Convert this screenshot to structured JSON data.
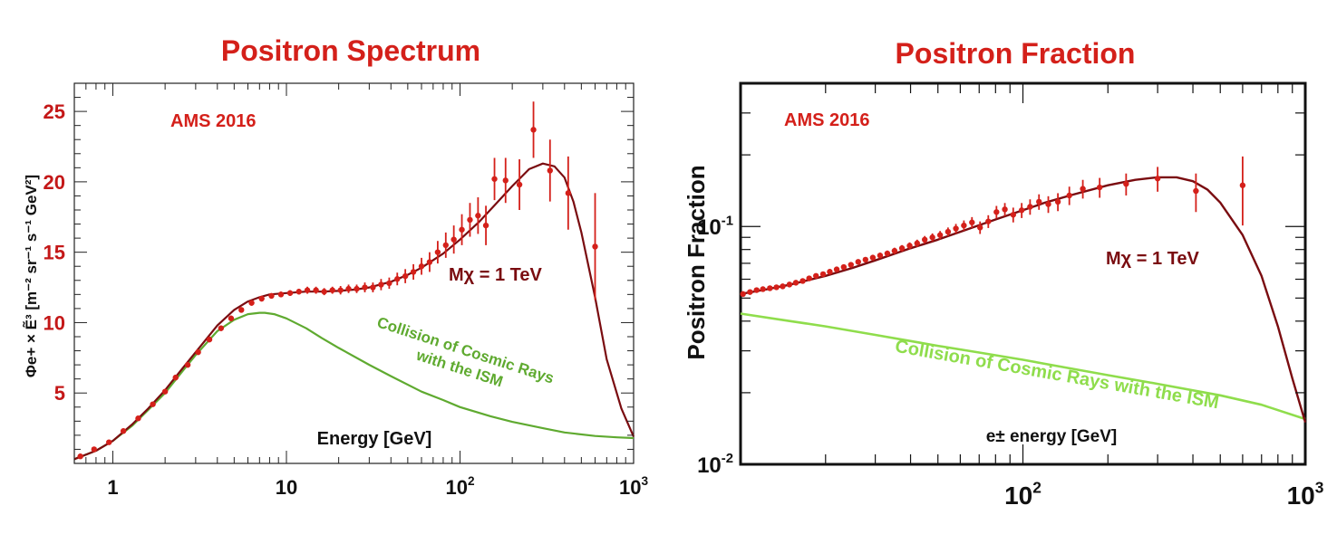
{
  "chart_data": [
    {
      "type": "scatter",
      "title": "Positron Spectrum",
      "ylabel": "Φe+ × Ẽ³ [m⁻² sr⁻¹ s⁻¹ GeV²]",
      "xlabel": "Energy [GeV]",
      "x_scale": "log",
      "y_scale": "linear",
      "xlim": [
        0.6,
        1000
      ],
      "ylim": [
        0,
        27
      ],
      "x_ticks": [
        {
          "v": 1,
          "base": "1",
          "exp": ""
        },
        {
          "v": 10,
          "base": "10",
          "exp": ""
        },
        {
          "v": 100,
          "base": "10",
          "exp": "2"
        },
        {
          "v": 1000,
          "base": "10",
          "exp": "3"
        }
      ],
      "y_ticks": [
        5,
        10,
        15,
        20,
        25
      ],
      "tag": "AMS 2016",
      "model_label": "Mχ = 1 TeV",
      "background_label": [
        "Collision of Cosmic Rays",
        "with the ISM"
      ],
      "colors": {
        "title": "#d4201a",
        "data": "#d4201a",
        "model": "#7a0c10",
        "background": "#5faa30",
        "tick": "#c41818"
      },
      "series": [
        {
          "name": "AMS 2016",
          "x": [
            0.65,
            0.78,
            0.95,
            1.15,
            1.4,
            1.7,
            2.0,
            2.3,
            2.7,
            3.1,
            3.6,
            4.2,
            4.8,
            5.5,
            6.3,
            7.2,
            8.2,
            9.3,
            10.5,
            11.8,
            13.2,
            14.8,
            16.5,
            18.4,
            20.5,
            22.8,
            25.4,
            28.3,
            31.5,
            35.1,
            39.1,
            43.5,
            48.4,
            53.9,
            60,
            66.8,
            74.4,
            82.8,
            92.1,
            102.5,
            114.1,
            127,
            141,
            158,
            183,
            220,
            265,
            330,
            420,
            600
          ],
          "y": [
            0.5,
            1.0,
            1.5,
            2.3,
            3.2,
            4.2,
            5.1,
            6.1,
            7.0,
            7.9,
            8.8,
            9.6,
            10.3,
            10.9,
            11.4,
            11.7,
            11.9,
            12.0,
            12.1,
            12.2,
            12.3,
            12.3,
            12.2,
            12.3,
            12.3,
            12.4,
            12.4,
            12.5,
            12.5,
            12.7,
            12.8,
            13.1,
            13.3,
            13.6,
            14.0,
            14.3,
            15.0,
            15.5,
            15.9,
            16.6,
            17.3,
            17.6,
            16.9,
            20.2,
            20.1,
            19.8,
            23.7,
            20.8,
            19.2,
            15.4
          ],
          "yerr": [
            0.1,
            0.1,
            0.1,
            0.1,
            0.1,
            0.15,
            0.15,
            0.2,
            0.2,
            0.2,
            0.2,
            0.2,
            0.2,
            0.2,
            0.2,
            0.2,
            0.2,
            0.2,
            0.2,
            0.2,
            0.25,
            0.25,
            0.25,
            0.25,
            0.3,
            0.3,
            0.3,
            0.35,
            0.35,
            0.4,
            0.4,
            0.45,
            0.5,
            0.55,
            0.6,
            0.7,
            0.8,
            0.9,
            1.0,
            1.1,
            1.2,
            1.3,
            1.4,
            1.5,
            1.6,
            1.8,
            2.0,
            2.2,
            2.6,
            3.8
          ]
        },
        {
          "name": "Mχ = 1 TeV",
          "x": [
            0.6,
            0.8,
            1.0,
            1.3,
            1.6,
            2.0,
            2.5,
            3.0,
            4.0,
            5.0,
            6.0,
            7.0,
            8.0,
            10,
            13,
            16,
            20,
            25,
            30,
            40,
            50,
            60,
            80,
            100,
            130,
            160,
            200,
            250,
            300,
            350,
            400,
            450,
            500,
            600,
            700,
            850,
            1000
          ],
          "y": [
            0.3,
            0.9,
            1.6,
            2.8,
            3.9,
            5.2,
            6.7,
            7.9,
            9.8,
            10.9,
            11.5,
            11.8,
            12.0,
            12.1,
            12.2,
            12.2,
            12.25,
            12.35,
            12.5,
            12.9,
            13.4,
            13.9,
            14.9,
            15.9,
            17.2,
            18.4,
            19.7,
            20.9,
            21.3,
            21.1,
            20.3,
            18.6,
            16.4,
            11.8,
            7.4,
            3.9,
            1.9
          ]
        },
        {
          "name": "Collision of Cosmic Rays with the ISM",
          "x": [
            0.6,
            0.8,
            1.0,
            1.3,
            1.6,
            2.0,
            2.5,
            3.0,
            4.0,
            5.0,
            6.0,
            7.0,
            7.5,
            8.5,
            10,
            13,
            16,
            20,
            30,
            40,
            60,
            80,
            100,
            150,
            200,
            300,
            400,
            600,
            800,
            1000
          ],
          "y": [
            0.3,
            0.9,
            1.6,
            2.7,
            3.8,
            5.0,
            6.5,
            7.7,
            9.4,
            10.2,
            10.6,
            10.7,
            10.7,
            10.6,
            10.3,
            9.6,
            8.9,
            8.2,
            7.0,
            6.2,
            5.1,
            4.5,
            4.0,
            3.35,
            2.95,
            2.5,
            2.2,
            1.95,
            1.85,
            1.8
          ]
        }
      ]
    },
    {
      "type": "scatter",
      "title": "Positron Fraction",
      "ylabel": "Positron Fraction",
      "xlabel": "e± energy [GeV]",
      "x_scale": "log",
      "y_scale": "log",
      "xlim": [
        10,
        1000
      ],
      "ylim": [
        0.01,
        0.4
      ],
      "x_ticks": [
        {
          "v": 100,
          "base": "10",
          "exp": "2"
        },
        {
          "v": 1000,
          "base": "10",
          "exp": "3"
        }
      ],
      "y_ticks": [
        {
          "v": 0.1,
          "base": "10",
          "exp": "-1"
        },
        {
          "v": 0.01,
          "base": "10",
          "exp": "-2"
        }
      ],
      "tag": "AMS 2016",
      "model_label": "Mχ = 1 TeV",
      "background_label": "Collision of Cosmic Rays with the ISM",
      "colors": {
        "title": "#d4201a",
        "data": "#d4201a",
        "model": "#7a0c10",
        "background": "#8fdd4c",
        "tick": "#111111"
      },
      "series": [
        {
          "name": "AMS 2016",
          "x": [
            10.2,
            10.8,
            11.4,
            12.0,
            12.7,
            13.4,
            14.1,
            14.9,
            15.7,
            16.6,
            17.5,
            18.5,
            19.6,
            20.7,
            21.9,
            23.2,
            24.6,
            26.1,
            27.7,
            29.4,
            31.2,
            33.1,
            35.1,
            37.3,
            39.7,
            42.2,
            44.9,
            47.8,
            50.9,
            54.3,
            57.9,
            61.8,
            66.0,
            70.5,
            75.4,
            80.6,
            86.3,
            92.4,
            99.0,
            106,
            114,
            123,
            133,
            146,
            163,
            187,
            232,
            300,
            410,
            600
          ],
          "y": [
            0.052,
            0.053,
            0.054,
            0.0545,
            0.055,
            0.0555,
            0.056,
            0.057,
            0.058,
            0.059,
            0.0605,
            0.062,
            0.063,
            0.0645,
            0.066,
            0.0675,
            0.069,
            0.071,
            0.0725,
            0.074,
            0.0755,
            0.077,
            0.079,
            0.081,
            0.083,
            0.085,
            0.088,
            0.09,
            0.092,
            0.095,
            0.098,
            0.101,
            0.104,
            0.099,
            0.105,
            0.115,
            0.118,
            0.112,
            0.117,
            0.121,
            0.127,
            0.124,
            0.127,
            0.135,
            0.144,
            0.146,
            0.151,
            0.159,
            0.141,
            0.149
          ],
          "yerr": [
            0.001,
            0.001,
            0.001,
            0.001,
            0.001,
            0.001,
            0.001,
            0.0012,
            0.0012,
            0.0012,
            0.0013,
            0.0013,
            0.0014,
            0.0014,
            0.0015,
            0.0016,
            0.0017,
            0.0018,
            0.0019,
            0.002,
            0.0021,
            0.0022,
            0.0024,
            0.0025,
            0.0027,
            0.003,
            0.0032,
            0.0035,
            0.0037,
            0.004,
            0.0045,
            0.005,
            0.0055,
            0.006,
            0.0065,
            0.007,
            0.0075,
            0.008,
            0.0085,
            0.009,
            0.0095,
            0.01,
            0.011,
            0.012,
            0.013,
            0.014,
            0.016,
            0.019,
            0.026,
            0.048
          ]
        },
        {
          "name": "Mχ = 1 TeV",
          "x": [
            10,
            12,
            15,
            20,
            25,
            30,
            40,
            50,
            60,
            80,
            100,
            120,
            150,
            200,
            250,
            300,
            350,
            400,
            450,
            500,
            600,
            700,
            800,
            900,
            1000
          ],
          "y": [
            0.052,
            0.054,
            0.057,
            0.062,
            0.067,
            0.072,
            0.081,
            0.088,
            0.095,
            0.107,
            0.117,
            0.126,
            0.136,
            0.149,
            0.157,
            0.161,
            0.161,
            0.155,
            0.143,
            0.126,
            0.092,
            0.062,
            0.038,
            0.023,
            0.015
          ]
        },
        {
          "name": "Collision of Cosmic Rays with the ISM",
          "x": [
            10,
            15,
            20,
            30,
            50,
            70,
            100,
            150,
            200,
            300,
            500,
            700,
            1000
          ],
          "y": [
            0.043,
            0.04,
            0.038,
            0.035,
            0.0315,
            0.0295,
            0.0275,
            0.0252,
            0.0237,
            0.0218,
            0.0195,
            0.0178,
            0.0155
          ]
        }
      ]
    }
  ]
}
